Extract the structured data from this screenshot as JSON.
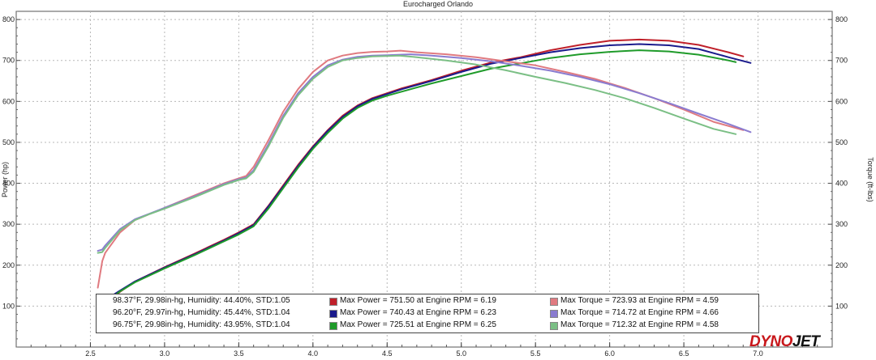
{
  "chart_data": {
    "type": "line",
    "title": "Eurocharged Orlando",
    "xlabel": "",
    "ylabel": "Power (hp)",
    "y2label": "Torque (ft-lbs)",
    "xlim": [
      2.0,
      7.5
    ],
    "ylim": [
      0,
      820
    ],
    "y2lim": [
      0,
      820
    ],
    "x_ticks": [
      "2.5",
      "3.0",
      "3.5",
      "4.0",
      "4.5",
      "5.0",
      "5.5",
      "6.0",
      "6.5",
      "7.0"
    ],
    "y_ticks": [
      "100",
      "200",
      "300",
      "400",
      "500",
      "600",
      "700",
      "800"
    ],
    "y2_ticks": [
      "100",
      "200",
      "300",
      "400",
      "500",
      "600",
      "700",
      "800"
    ],
    "grid": true,
    "series": [
      {
        "name": "Max Power = 751.50 at Engine RPM = 6.19",
        "kind": "power",
        "color": "#c0202a",
        "x": [
          2.55,
          2.6,
          2.7,
          2.8,
          3.0,
          3.2,
          3.4,
          3.5,
          3.6,
          3.7,
          3.8,
          3.9,
          4.0,
          4.1,
          4.2,
          4.3,
          4.4,
          4.5,
          4.6,
          4.8,
          5.0,
          5.2,
          5.4,
          5.6,
          5.8,
          6.0,
          6.2,
          6.4,
          6.6,
          6.8,
          6.9
        ],
        "y": [
          70,
          105,
          135,
          160,
          195,
          228,
          262,
          280,
          300,
          345,
          395,
          445,
          490,
          530,
          565,
          590,
          608,
          620,
          632,
          652,
          675,
          695,
          708,
          725,
          738,
          748,
          751,
          748,
          738,
          720,
          710
        ]
      },
      {
        "name": "Max Power = 740.43 at Engine RPM = 6.23",
        "kind": "power",
        "color": "#1a1a8c",
        "x": [
          2.55,
          2.6,
          2.7,
          2.8,
          3.0,
          3.2,
          3.4,
          3.5,
          3.6,
          3.7,
          3.8,
          3.9,
          4.0,
          4.1,
          4.2,
          4.3,
          4.4,
          4.5,
          4.6,
          4.8,
          5.0,
          5.2,
          5.4,
          5.6,
          5.8,
          6.0,
          6.2,
          6.4,
          6.6,
          6.8,
          6.95
        ],
        "y": [
          110,
          115,
          138,
          160,
          194,
          226,
          260,
          278,
          298,
          343,
          392,
          442,
          488,
          528,
          562,
          588,
          606,
          618,
          630,
          650,
          672,
          692,
          706,
          720,
          730,
          737,
          740,
          737,
          728,
          708,
          694
        ]
      },
      {
        "name": "Max Power = 725.51 at Engine RPM = 6.25",
        "kind": "power",
        "color": "#1f9b2a",
        "x": [
          2.55,
          2.6,
          2.7,
          2.8,
          3.0,
          3.2,
          3.4,
          3.5,
          3.6,
          3.7,
          3.8,
          3.9,
          4.0,
          4.1,
          4.2,
          4.3,
          4.4,
          4.5,
          4.6,
          4.8,
          5.0,
          5.2,
          5.4,
          5.6,
          5.8,
          6.0,
          6.2,
          6.4,
          6.6,
          6.8,
          6.85
        ],
        "y": [
          85,
          108,
          136,
          158,
          192,
          224,
          258,
          275,
          295,
          338,
          388,
          438,
          484,
          523,
          558,
          584,
          602,
          614,
          624,
          644,
          662,
          680,
          693,
          706,
          715,
          721,
          725,
          722,
          714,
          700,
          696
        ]
      },
      {
        "name": "Max Torque = 723.93 at Engine RPM = 4.59",
        "kind": "torque",
        "color": "#e07a80",
        "x": [
          2.55,
          2.58,
          2.6,
          2.7,
          2.8,
          2.9,
          3.0,
          3.2,
          3.4,
          3.5,
          3.55,
          3.6,
          3.7,
          3.8,
          3.9,
          4.0,
          4.1,
          4.2,
          4.3,
          4.4,
          4.5,
          4.59,
          4.7,
          4.9,
          5.1,
          5.3,
          5.5,
          5.7,
          5.9,
          6.1,
          6.3,
          6.5,
          6.7,
          6.9
        ],
        "y": [
          145,
          210,
          230,
          280,
          310,
          325,
          340,
          370,
          400,
          412,
          418,
          440,
          505,
          575,
          630,
          672,
          700,
          712,
          718,
          721,
          722,
          724,
          720,
          715,
          708,
          698,
          688,
          672,
          655,
          633,
          608,
          580,
          550,
          530
        ]
      },
      {
        "name": "Max Torque = 714.72 at Engine RPM = 4.66",
        "kind": "torque",
        "color": "#8a7cd0",
        "x": [
          2.55,
          2.58,
          2.6,
          2.7,
          2.8,
          2.9,
          3.0,
          3.2,
          3.4,
          3.5,
          3.55,
          3.6,
          3.7,
          3.8,
          3.9,
          4.0,
          4.1,
          4.2,
          4.3,
          4.4,
          4.5,
          4.66,
          4.8,
          5.0,
          5.2,
          5.4,
          5.6,
          5.8,
          6.0,
          6.2,
          6.4,
          6.6,
          6.8,
          6.95
        ],
        "y": [
          235,
          238,
          248,
          288,
          312,
          326,
          340,
          368,
          398,
          410,
          414,
          432,
          495,
          565,
          620,
          660,
          688,
          702,
          709,
          712,
          713,
          715,
          712,
          706,
          698,
          687,
          675,
          660,
          642,
          620,
          596,
          570,
          545,
          525
        ]
      },
      {
        "name": "Max Torque = 712.32 at Engine RPM = 4.58",
        "kind": "torque",
        "color": "#7bbf85",
        "x": [
          2.55,
          2.58,
          2.6,
          2.7,
          2.8,
          2.9,
          3.0,
          3.2,
          3.4,
          3.5,
          3.55,
          3.6,
          3.7,
          3.8,
          3.9,
          4.0,
          4.1,
          4.2,
          4.3,
          4.4,
          4.5,
          4.58,
          4.7,
          4.9,
          5.1,
          5.3,
          5.5,
          5.7,
          5.9,
          6.1,
          6.3,
          6.5,
          6.7,
          6.85
        ],
        "y": [
          230,
          232,
          242,
          285,
          310,
          325,
          338,
          366,
          396,
          408,
          412,
          428,
          490,
          560,
          615,
          655,
          684,
          700,
          706,
          710,
          711,
          712,
          708,
          700,
          690,
          676,
          660,
          645,
          628,
          608,
          584,
          558,
          533,
          520
        ]
      }
    ]
  },
  "legend": {
    "rows": [
      {
        "conditions": "98.37°F, 29.98in-hg, Humidity: 44.40%, STD:1.05",
        "power": "Max Power = 751.50 at Engine RPM = 6.19",
        "torque": "Max Torque = 723.93 at Engine RPM = 4.59",
        "power_color": "#c0202a",
        "torque_color": "#e07a80"
      },
      {
        "conditions": "96.20°F, 29.97in-hg, Humidity: 45.44%, STD:1.04",
        "power": "Max Power = 740.43 at Engine RPM = 6.23",
        "torque": "Max Torque = 714.72 at Engine RPM = 4.66",
        "power_color": "#1a1a8c",
        "torque_color": "#8a7cd0"
      },
      {
        "conditions": "96.75°F, 29.98in-hg, Humidity: 43.95%, STD:1.04",
        "power": "Max Power = 725.51 at Engine RPM = 6.25",
        "torque": "Max Torque = 712.32 at Engine RPM = 4.58",
        "power_color": "#1f9b2a",
        "torque_color": "#7bbf85"
      }
    ]
  },
  "logo": {
    "part1": "DYNO",
    "part2": "JET"
  }
}
